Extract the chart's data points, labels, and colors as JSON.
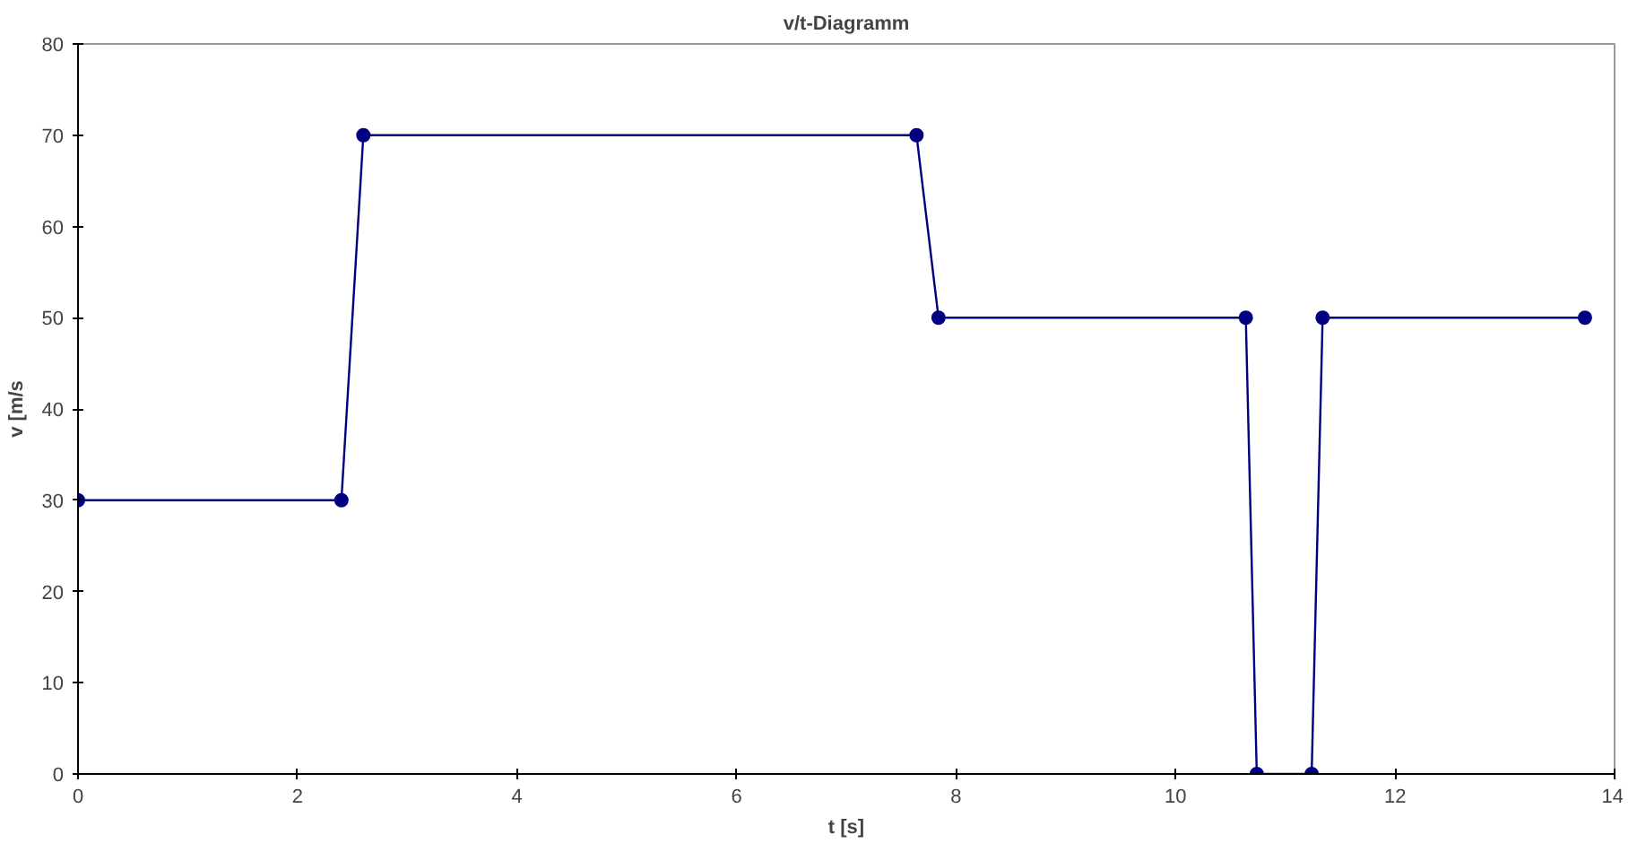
{
  "chart_data": {
    "type": "line",
    "title": "v/t-Diagramm",
    "xlabel": "t [s]",
    "ylabel": "v [m/s",
    "x": [
      0,
      2.4,
      2.6,
      7.64,
      7.84,
      10.64,
      10.74,
      11.24,
      11.34,
      13.73
    ],
    "series": [
      {
        "color": "#000080",
        "values": [
          30,
          30,
          70,
          70,
          50,
          50,
          0,
          0,
          50,
          50
        ]
      }
    ],
    "xlim": [
      0,
      14
    ],
    "xticks": [
      0,
      2,
      4,
      6,
      8,
      10,
      12,
      14
    ],
    "ylim": [
      0,
      80
    ],
    "yticks": [
      0,
      10,
      20,
      30,
      40,
      50,
      60,
      70,
      80
    ],
    "grid": false,
    "marker": "circle",
    "line_style": "solid"
  }
}
